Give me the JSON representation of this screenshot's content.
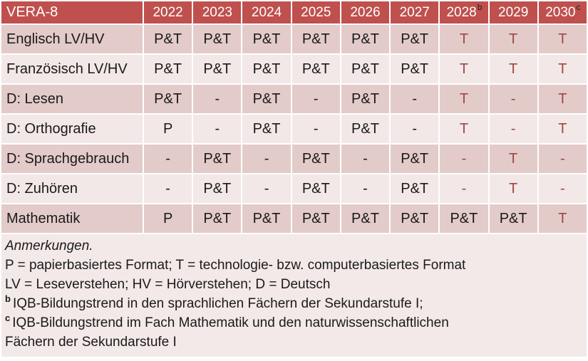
{
  "colors": {
    "header_bg": "#BF504D",
    "header_text": "#FFFFFF",
    "row_dark": "#E3CBC9",
    "row_light": "#F2E8E7",
    "notes_bg": "#F2E9E8",
    "red_value_text": "#9E4744",
    "body_text": "#1A1A1A"
  },
  "table": {
    "header": {
      "label": "VERA-8",
      "years": [
        {
          "text": "2022",
          "sup": ""
        },
        {
          "text": "2023",
          "sup": ""
        },
        {
          "text": "2024",
          "sup": ""
        },
        {
          "text": "2025",
          "sup": ""
        },
        {
          "text": "2026",
          "sup": ""
        },
        {
          "text": "2027",
          "sup": ""
        },
        {
          "text": "2028",
          "sup": "b"
        },
        {
          "text": "2029",
          "sup": ""
        },
        {
          "text": "2030",
          "sup": "c"
        }
      ]
    },
    "rows": [
      {
        "label": "Englisch LV/HV",
        "cells": [
          {
            "v": "P&T",
            "red": false
          },
          {
            "v": "P&T",
            "red": false
          },
          {
            "v": "P&T",
            "red": false
          },
          {
            "v": "P&T",
            "red": false
          },
          {
            "v": "P&T",
            "red": false
          },
          {
            "v": "P&T",
            "red": false
          },
          {
            "v": "T",
            "red": true
          },
          {
            "v": "T",
            "red": true
          },
          {
            "v": "T",
            "red": true
          }
        ]
      },
      {
        "label": "Französisch LV/HV",
        "cells": [
          {
            "v": "P&T",
            "red": false
          },
          {
            "v": "P&T",
            "red": false
          },
          {
            "v": "P&T",
            "red": false
          },
          {
            "v": "P&T",
            "red": false
          },
          {
            "v": "P&T",
            "red": false
          },
          {
            "v": "P&T",
            "red": false
          },
          {
            "v": "T",
            "red": true
          },
          {
            "v": "T",
            "red": true
          },
          {
            "v": "T",
            "red": true
          }
        ]
      },
      {
        "label": "D: Lesen",
        "cells": [
          {
            "v": "P&T",
            "red": false
          },
          {
            "v": "-",
            "red": false
          },
          {
            "v": "P&T",
            "red": false
          },
          {
            "v": "-",
            "red": false
          },
          {
            "v": "P&T",
            "red": false
          },
          {
            "v": "-",
            "red": false
          },
          {
            "v": "T",
            "red": true
          },
          {
            "v": "-",
            "red": true
          },
          {
            "v": "T",
            "red": true
          }
        ]
      },
      {
        "label": "D: Orthografie",
        "cells": [
          {
            "v": "P",
            "red": false
          },
          {
            "v": "-",
            "red": false
          },
          {
            "v": "P&T",
            "red": false
          },
          {
            "v": "-",
            "red": false
          },
          {
            "v": "P&T",
            "red": false
          },
          {
            "v": "-",
            "red": false
          },
          {
            "v": "T",
            "red": true
          },
          {
            "v": "-",
            "red": true
          },
          {
            "v": "T",
            "red": true
          }
        ]
      },
      {
        "label": "D: Sprachgebrauch",
        "cells": [
          {
            "v": "-",
            "red": false
          },
          {
            "v": "P&T",
            "red": false
          },
          {
            "v": "-",
            "red": false
          },
          {
            "v": "P&T",
            "red": false
          },
          {
            "v": "-",
            "red": false
          },
          {
            "v": "P&T",
            "red": false
          },
          {
            "v": "-",
            "red": true
          },
          {
            "v": "T",
            "red": true
          },
          {
            "v": "-",
            "red": true
          }
        ]
      },
      {
        "label": "D: Zuhören",
        "cells": [
          {
            "v": "-",
            "red": false
          },
          {
            "v": "P&T",
            "red": false
          },
          {
            "v": "-",
            "red": false
          },
          {
            "v": "P&T",
            "red": false
          },
          {
            "v": "-",
            "red": false
          },
          {
            "v": "P&T",
            "red": false
          },
          {
            "v": "-",
            "red": true
          },
          {
            "v": "T",
            "red": true
          },
          {
            "v": "-",
            "red": true
          }
        ]
      },
      {
        "label": "Mathematik",
        "cells": [
          {
            "v": "P",
            "red": false
          },
          {
            "v": "P&T",
            "red": false
          },
          {
            "v": "P&T",
            "red": false
          },
          {
            "v": "P&T",
            "red": false
          },
          {
            "v": "P&T",
            "red": false
          },
          {
            "v": "P&T",
            "red": false
          },
          {
            "v": "P&T",
            "red": false
          },
          {
            "v": "P&T",
            "red": false
          },
          {
            "v": "T",
            "red": true
          }
        ]
      }
    ]
  },
  "notes": {
    "title": "Anmerkungen.",
    "format_legend": "P = papierbasiertes Format; T = technologie- bzw. computerbasiertes Format",
    "abbrev_legend": "LV = Leseverstehen; HV = Hörverstehen; D = Deutsch",
    "b": {
      "sup": "b",
      "text": "IQB-Bildungstrend in den sprachlichen Fächern der Sekundarstufe I;"
    },
    "c": {
      "sup": "c",
      "line1": "IQB-Bildungstrend im Fach Mathematik und den naturwissenschaftlichen",
      "line2": "Fächern der Sekundarstufe I"
    }
  }
}
